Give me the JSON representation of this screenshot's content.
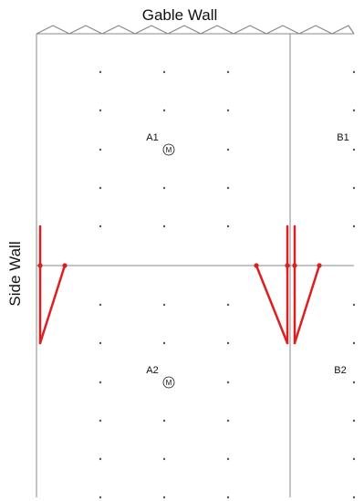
{
  "labels": {
    "top_wall": "Gable Wall",
    "side_wall": "Side Wall"
  },
  "zones": {
    "a1": "A1",
    "b1": "B1",
    "a2": "A2",
    "b2": "B2"
  },
  "marker": {
    "text": "M",
    "icon": "circled-m-marker"
  },
  "colors": {
    "line": "#888888",
    "grid_dot": "#555555",
    "accent": "#dd1f1f",
    "text": "#111111"
  }
}
